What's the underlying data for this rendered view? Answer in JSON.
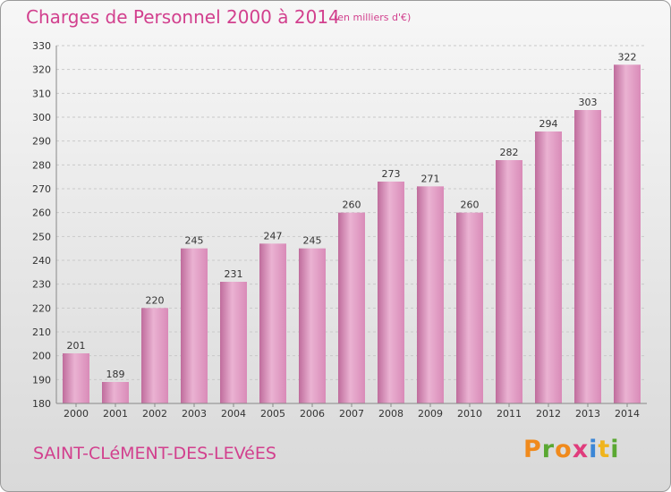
{
  "chart_data": {
    "type": "bar",
    "title": "Charges de Personnel 2000 à 2014",
    "subtitle": "(en milliers d'€)",
    "xlabel": "",
    "ylabel": "",
    "categories": [
      "2000",
      "2001",
      "2002",
      "2003",
      "2004",
      "2005",
      "2006",
      "2007",
      "2008",
      "2009",
      "2010",
      "2011",
      "2012",
      "2013",
      "2014"
    ],
    "values": [
      201,
      189,
      220,
      245,
      231,
      247,
      245,
      260,
      273,
      271,
      260,
      282,
      294,
      303,
      322
    ],
    "ylim": [
      180,
      330
    ],
    "yticks": [
      180,
      190,
      200,
      210,
      220,
      230,
      240,
      250,
      260,
      270,
      280,
      290,
      300,
      310,
      320,
      330
    ],
    "grid": true,
    "data_labels": true,
    "legend": "none"
  },
  "footer": {
    "town": "SAINT-CLéMENT-DES-LEVéES",
    "brand": "Proxiti"
  },
  "colors": {
    "accent": "#d2408e",
    "bar": "#d98bb8",
    "bar_light": "#eab2d2",
    "bar_dark": "#bf6c9c",
    "grid": "#c9c9c9",
    "axis_text": "#333333",
    "brand_letters": [
      "#f08a1c",
      "#5aa832",
      "#f08a1c",
      "#e03c7c",
      "#3b86d6",
      "#f0b41c",
      "#5aa832"
    ]
  }
}
